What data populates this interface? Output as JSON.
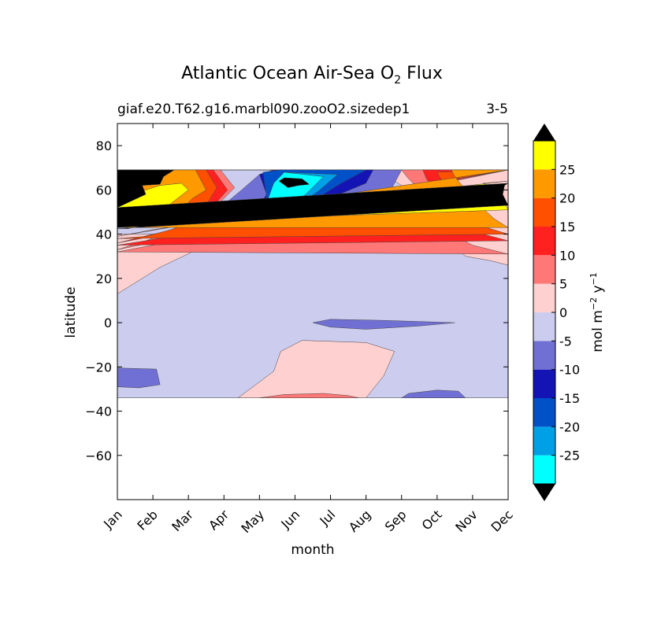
{
  "chart_data": {
    "type": "heatmap",
    "title": "Atlantic Ocean Air-Sea O",
    "title_sub": "2",
    "title_tail": " Flux",
    "subtitle_left": "giaf.e20.T62.g16.marbl090.zooO2.sizedep1",
    "subtitle_right": "3-5",
    "xlabel": "month",
    "ylabel": "latitude",
    "x_categories": [
      "Jan",
      "Feb",
      "Mar",
      "Apr",
      "May",
      "Jun",
      "Jul",
      "Aug",
      "Sep",
      "Oct",
      "Nov",
      "Dec"
    ],
    "y_ticks": [
      -60,
      -40,
      -20,
      0,
      20,
      40,
      60,
      80
    ],
    "ylim": [
      -80,
      90
    ],
    "data_lat_range": [
      -34,
      69
    ],
    "colorbar": {
      "label": "mol m",
      "label_exp1": "−2",
      "label_mid": " y",
      "label_exp2": "−1",
      "tick_labels": [
        "25",
        "20",
        "15",
        "10",
        "5",
        "0",
        "-5",
        "-10",
        "-15",
        "-20",
        "-25"
      ],
      "levels": [
        -30,
        -25,
        -20,
        -15,
        -10,
        -5,
        0,
        5,
        10,
        15,
        20,
        25,
        30
      ],
      "colors": [
        "#00ffff",
        "#00a0e6",
        "#0050c8",
        "#1414b4",
        "#7070d4",
        "#ccccee",
        "#ffd0d0",
        "#ff7878",
        "#ff2020",
        "#ff5000",
        "#ff9900",
        "#ffff00"
      ],
      "under_color": "#000000",
      "over_color": "#000000"
    },
    "regions": [
      {
        "name": "background-0-to-5",
        "value": -2
      },
      {
        "name": "south-positive",
        "value": 2
      },
      {
        "name": "south-strong-positive",
        "value": 7
      },
      {
        "name": "north-positive",
        "value": 2
      },
      {
        "name": "equatorial-negative",
        "value": -7
      },
      {
        "name": "south-west-negative",
        "value": -7
      },
      {
        "name": "south-east-negative",
        "value": -7
      },
      {
        "name": "bloom-minus-5",
        "value": -7
      },
      {
        "name": "bloom-minus-10",
        "value": -12
      },
      {
        "name": "bloom-minus-15",
        "value": -17
      },
      {
        "name": "bloom-minus-20",
        "value": -22
      },
      {
        "name": "bloom-minus-25",
        "value": -27
      },
      {
        "name": "bloom-core",
        "value": -32
      },
      {
        "name": "winter-5",
        "value": 7
      },
      {
        "name": "winter-10",
        "value": 12
      },
      {
        "name": "winter-15",
        "value": 17
      },
      {
        "name": "winter-20",
        "value": 22
      },
      {
        "name": "winter-25",
        "value": 27
      },
      {
        "name": "winter-over",
        "value": 32
      }
    ]
  }
}
